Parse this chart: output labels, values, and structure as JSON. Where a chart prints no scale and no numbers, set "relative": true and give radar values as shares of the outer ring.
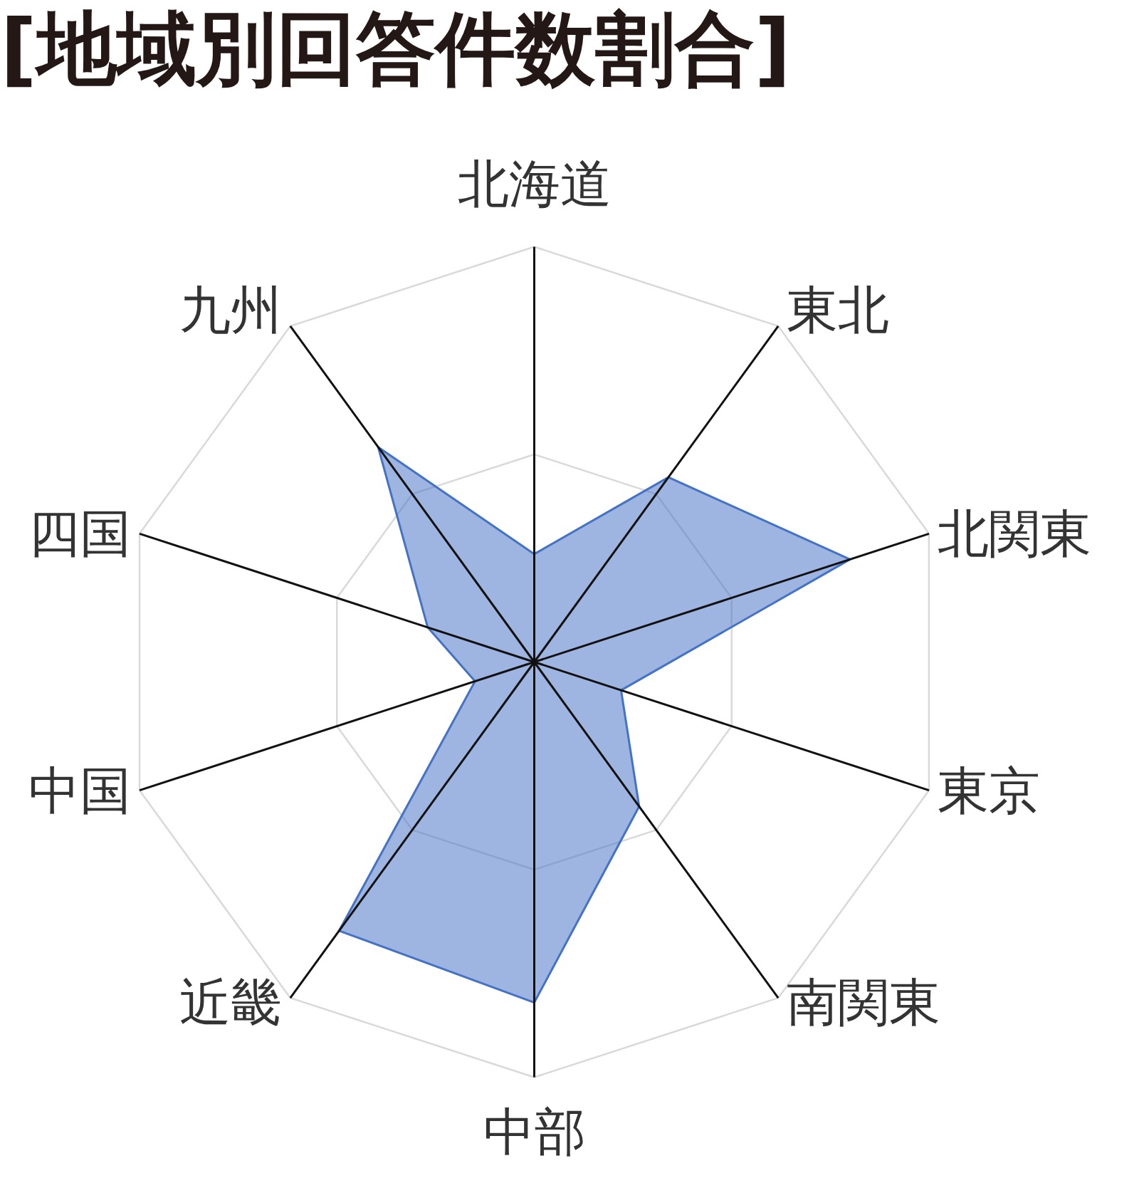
{
  "chart_data": {
    "type": "radar",
    "title": "[地域別回答件数割合]",
    "relative": true,
    "grid": true,
    "categories": [
      "北海道",
      "東北",
      "北関東",
      "東京",
      "南関東",
      "中部",
      "近畿",
      "中国",
      "四国",
      "九州"
    ],
    "series": [
      {
        "color": "#4472c4",
        "values": [
          0.26,
          0.55,
          0.8,
          0.22,
          0.43,
          0.82,
          0.8,
          0.15,
          0.27,
          0.64
        ]
      }
    ]
  }
}
